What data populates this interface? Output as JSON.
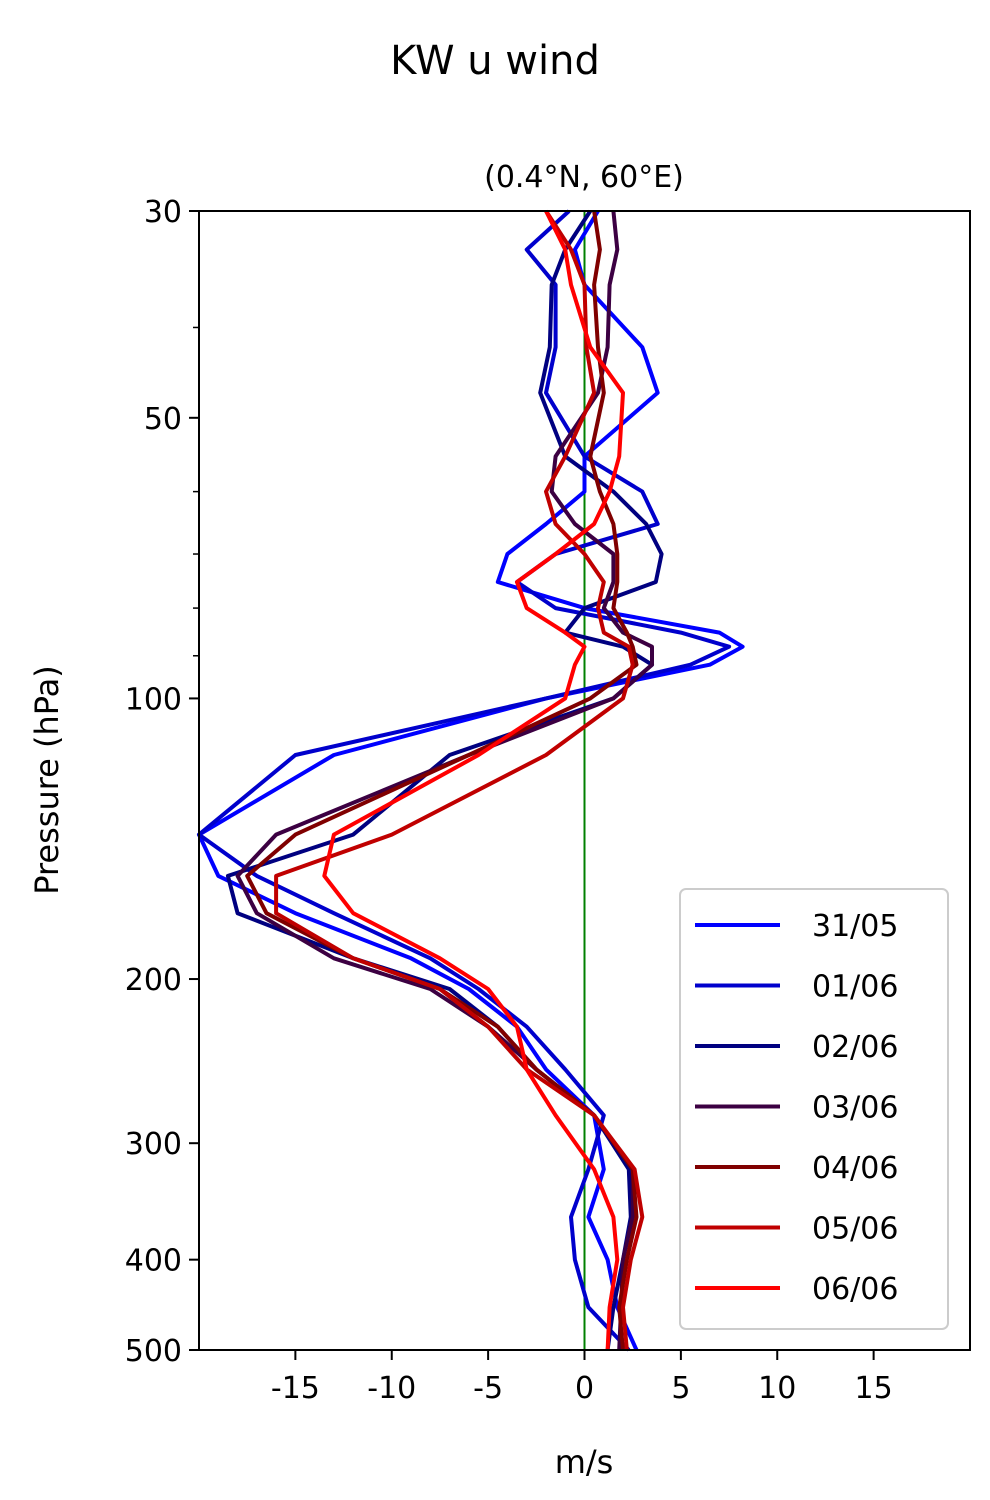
{
  "figure_title": "KW u wind",
  "chart_data": {
    "type": "line",
    "title": "(0.4°N, 60°E)",
    "xlabel": "m/s",
    "ylabel": "Pressure (hPa)",
    "xlim": [
      -20,
      20
    ],
    "ylim": [
      500,
      30
    ],
    "y_scale": "log",
    "x_ticks": [
      -15,
      -10,
      -5,
      0,
      5,
      10,
      15
    ],
    "x_tick_labels": [
      "-15",
      "-10",
      "-5",
      "0",
      "5",
      "10",
      "15"
    ],
    "y_ticks": [
      30,
      50,
      100,
      200,
      300,
      400,
      500
    ],
    "y_tick_labels": [
      "30",
      "50",
      "100",
      "200",
      "300",
      "400",
      "500"
    ],
    "y_minor_ticks": [
      40,
      60,
      70,
      80,
      90
    ],
    "grid": false,
    "reference_line": {
      "x": 0,
      "color": "#008000"
    },
    "legend_position": "lower-right",
    "series": [
      {
        "name": "31/05",
        "color": "#0000ff",
        "x": [
          0.7,
          -0.5,
          0,
          3,
          3.8,
          0,
          0,
          -2,
          -4,
          -4.5,
          0,
          7,
          8.2,
          6.5,
          -2,
          -13,
          -20,
          -19,
          -15,
          -9,
          -6,
          -3.5,
          -2,
          0.5,
          1,
          0.2,
          1.2,
          1.7,
          2.7
        ],
        "y": [
          30,
          33,
          36,
          42,
          47,
          55,
          60,
          65,
          70,
          75,
          80,
          85,
          88,
          92,
          100,
          115,
          140,
          155,
          170,
          190,
          205,
          225,
          250,
          280,
          320,
          360,
          400,
          450,
          500
        ]
      },
      {
        "name": "01/06",
        "color": "#0000cc",
        "x": [
          -0.8,
          -3,
          -1.5,
          -1.5,
          -2,
          0,
          3,
          3.8,
          -1.5,
          -3.5,
          -1.5,
          5,
          7.5,
          5.5,
          -2,
          -15,
          -20,
          -17,
          -13,
          -8,
          -5.5,
          -3,
          -1,
          1,
          0.2,
          -0.7,
          -0.5,
          0.2,
          2.3
        ],
        "y": [
          30,
          33,
          36,
          42,
          47,
          55,
          60,
          65,
          70,
          75,
          80,
          85,
          88,
          92,
          100,
          115,
          140,
          155,
          170,
          190,
          205,
          225,
          250,
          280,
          320,
          360,
          400,
          450,
          500
        ]
      },
      {
        "name": "02/06",
        "color": "#000080",
        "x": [
          0.3,
          -1,
          -1.7,
          -1.8,
          -2.3,
          -1,
          1.5,
          3.2,
          4,
          3.7,
          0,
          -1,
          2,
          3.5,
          1.5,
          -7,
          -12,
          -18.5,
          -18,
          -12,
          -7,
          -4.5,
          -2.5,
          0.5,
          2.3,
          2.4,
          2,
          1.5,
          1.2
        ],
        "y": [
          30,
          33,
          36,
          42,
          47,
          55,
          60,
          65,
          70,
          75,
          80,
          85,
          88,
          92,
          100,
          115,
          140,
          155,
          170,
          190,
          205,
          225,
          250,
          280,
          320,
          360,
          400,
          450,
          500
        ]
      },
      {
        "name": "03/06",
        "color": "#3c0042",
        "x": [
          1.5,
          1.7,
          1.3,
          1.2,
          0.7,
          -1.5,
          -1.7,
          -0.5,
          1.5,
          1.5,
          1,
          2,
          3.5,
          3.5,
          1.5,
          -6,
          -16,
          -18,
          -17,
          -13,
          -8,
          -5,
          -2.5,
          0.5,
          2.5,
          2.5,
          2,
          1.9,
          1.8
        ],
        "y": [
          30,
          33,
          36,
          42,
          47,
          55,
          60,
          65,
          70,
          75,
          80,
          85,
          88,
          92,
          100,
          115,
          140,
          155,
          170,
          190,
          205,
          225,
          250,
          280,
          320,
          360,
          400,
          450,
          500
        ]
      },
      {
        "name": "04/06",
        "color": "#800000",
        "x": [
          0.5,
          0.8,
          0.5,
          0.7,
          1,
          0.3,
          0.8,
          1.5,
          1.7,
          1.7,
          1.5,
          2.2,
          2.5,
          2.7,
          0.3,
          -6,
          -15,
          -17.5,
          -16.5,
          -12,
          -7.5,
          -4.5,
          -2.5,
          0.5,
          2.5,
          2.7,
          2.2,
          1.8,
          2
        ],
        "y": [
          30,
          33,
          36,
          42,
          47,
          55,
          60,
          65,
          70,
          75,
          80,
          85,
          88,
          92,
          100,
          115,
          140,
          155,
          170,
          190,
          205,
          225,
          250,
          280,
          320,
          360,
          400,
          450,
          500
        ]
      },
      {
        "name": "05/06",
        "color": "#c00000",
        "x": [
          -2,
          -0.7,
          0,
          0.1,
          0.5,
          -1,
          -2,
          -1.5,
          0,
          1,
          0.7,
          1,
          2.3,
          2.5,
          2,
          -2,
          -10,
          -16,
          -16,
          -12,
          -7.5,
          -5,
          -3,
          0.5,
          2.6,
          3,
          2.4,
          2,
          2.2
        ],
        "y": [
          30,
          33,
          36,
          42,
          47,
          55,
          60,
          65,
          70,
          75,
          80,
          85,
          88,
          92,
          100,
          115,
          140,
          155,
          170,
          190,
          205,
          225,
          250,
          280,
          320,
          360,
          400,
          450,
          500
        ]
      },
      {
        "name": "06/06",
        "color": "#ff0000",
        "x": [
          -2,
          -1,
          -0.7,
          0.3,
          2,
          1.8,
          1.3,
          0.5,
          -1.5,
          -3.5,
          -3,
          -1,
          0,
          -0.5,
          -1,
          -5.5,
          -13,
          -13.5,
          -12,
          -7.5,
          -5,
          -3.5,
          -3,
          -1.5,
          0.5,
          1.5,
          1.7,
          1.3,
          1.2
        ],
        "y": [
          30,
          33,
          36,
          42,
          47,
          55,
          60,
          65,
          70,
          75,
          80,
          85,
          88,
          92,
          100,
          115,
          140,
          155,
          170,
          190,
          205,
          225,
          250,
          280,
          320,
          360,
          400,
          450,
          500
        ]
      }
    ]
  }
}
